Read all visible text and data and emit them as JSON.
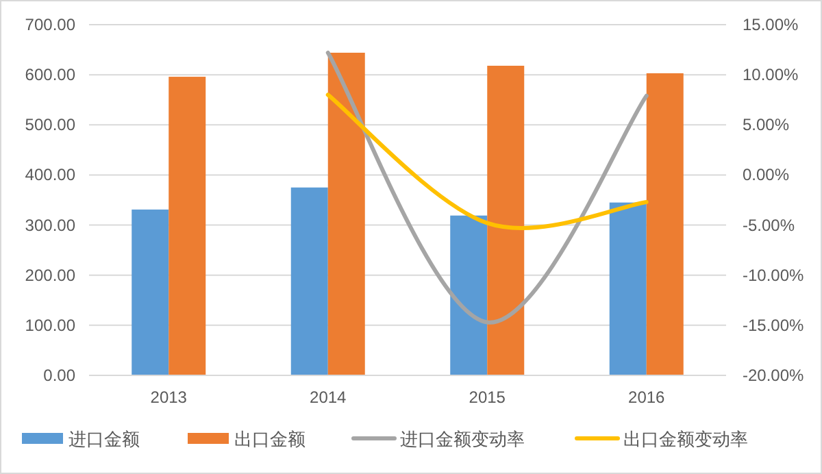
{
  "chart_data": {
    "type": "bar",
    "categories": [
      "2013",
      "2014",
      "2015",
      "2016"
    ],
    "series": [
      {
        "name": "进口金额",
        "color": "#5b9bd5",
        "values": [
          331,
          375,
          319,
          345
        ]
      },
      {
        "name": "出口金额",
        "color": "#ed7d31",
        "values": [
          596,
          644,
          618,
          603
        ]
      },
      {
        "name": "进口金额变动率",
        "type": "line",
        "axis": "y2",
        "color": "#a5a5a5",
        "values": [
          null,
          12.2,
          -14.7,
          7.9
        ]
      },
      {
        "name": "出口金额变动率",
        "type": "line",
        "axis": "y2",
        "color": "#ffc000",
        "values": [
          null,
          8.0,
          -4.8,
          -2.7
        ]
      }
    ],
    "ylim": [
      0,
      700
    ],
    "yticks": [
      {
        "value": 0,
        "label": "0.00"
      },
      {
        "value": 100,
        "label": "100.00"
      },
      {
        "value": 200,
        "label": "200.00"
      },
      {
        "value": 300,
        "label": "300.00"
      },
      {
        "value": 400,
        "label": "400.00"
      },
      {
        "value": 500,
        "label": "500.00"
      },
      {
        "value": 600,
        "label": "600.00"
      },
      {
        "value": 700,
        "label": "700.00"
      }
    ],
    "y2lim": [
      -20,
      15
    ],
    "y2ticks": [
      {
        "value": -20,
        "label": "-20.00%"
      },
      {
        "value": -15,
        "label": "-15.00%"
      },
      {
        "value": -10,
        "label": "-10.00%"
      },
      {
        "value": -5,
        "label": "-5.00%"
      },
      {
        "value": 0,
        "label": "0.00%"
      },
      {
        "value": 5,
        "label": "5.00%"
      },
      {
        "value": 10,
        "label": "10.00%"
      },
      {
        "value": 15,
        "label": "15.00%"
      }
    ],
    "grid": "y",
    "legend": "bottom",
    "marker": "none",
    "line_style": "solid"
  }
}
